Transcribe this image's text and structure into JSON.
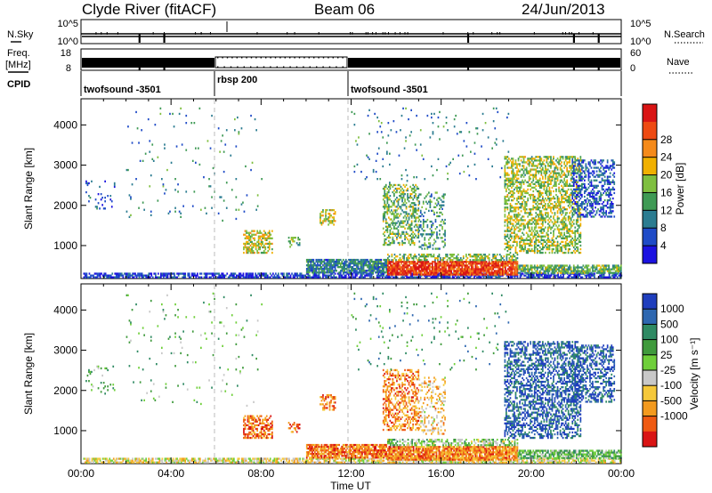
{
  "chart_data": {
    "type": "heatmap",
    "header": {
      "station": "Clyde River (fitACF)",
      "beam": "Beam 06",
      "date": "24/Jun/2013"
    },
    "xlabel": "Time UT",
    "x_ticks": [
      "00:00",
      "04:00",
      "08:00",
      "12:00",
      "16:00",
      "20:00",
      "00:00"
    ],
    "xlim_hours": [
      0,
      24
    ],
    "guides_hours": [
      6,
      12
    ],
    "noise_panel": {
      "left_label": "N.Sky",
      "right_label": "N.Search",
      "left_ticks": [
        "10^5",
        "10^0"
      ],
      "right_ticks": [
        "10^5",
        "10^0"
      ],
      "dips_hours": [
        2.6,
        3.7,
        17.2,
        21.9,
        23.0
      ]
    },
    "freq_panel": {
      "left_label_1": "Freq.",
      "left_label_2": "[MHz]",
      "right_label": "Nave",
      "left_ticks": [
        "18",
        "8"
      ],
      "right_ticks": [
        "60",
        "0"
      ],
      "open_segment_hours": [
        6,
        12
      ]
    },
    "cpid_panel": {
      "label": "CPID",
      "segments": [
        {
          "start": 0,
          "end": 6,
          "name": "twofsound -3501"
        },
        {
          "start": 6,
          "end": 12,
          "name": "rbsp 200"
        },
        {
          "start": 12,
          "end": 24,
          "name": "twofsound -3501"
        }
      ]
    },
    "range_axis": {
      "label": "Slant Range [km]",
      "ylim": [
        180,
        4650
      ],
      "ticks": [
        "1000",
        "2000",
        "3000",
        "4000"
      ]
    },
    "power_scale": {
      "label": "Power [dB]",
      "ticks": [
        "4",
        "8",
        "12",
        "16",
        "20",
        "24",
        "28"
      ],
      "colors": [
        "#1c12e0",
        "#1f4bc7",
        "#2b7c91",
        "#3f9a55",
        "#7fbf3f",
        "#f0b000",
        "#f58a1a",
        "#ee4a12",
        "#d91414"
      ]
    },
    "velocity_scale": {
      "label": "Velocity [m s⁻¹]",
      "ticks": [
        "1000",
        "500",
        "100",
        "25",
        "-25",
        "-100",
        "-500",
        "-1000"
      ],
      "colors": [
        "#1f3ebd",
        "#2e67b0",
        "#2f8a63",
        "#3f9a3c",
        "#6fcf3a",
        "#c8c8c8",
        "#f5c83a",
        "#f39a1e",
        "#ef5a12",
        "#d91414"
      ]
    },
    "echo_regions": [
      {
        "t0": 0.1,
        "t1": 24,
        "r0": 190,
        "r1": 300,
        "density": 0.65,
        "power": 0.12,
        "vel": 0.58
      },
      {
        "t0": 10.0,
        "t1": 13.6,
        "r0": 310,
        "r1": 650,
        "density": 0.85,
        "power": 0.28,
        "vel": 0.8
      },
      {
        "t0": 13.6,
        "t1": 19.4,
        "r0": 260,
        "r1": 620,
        "density": 0.9,
        "power": 0.88,
        "vel": 0.78
      },
      {
        "t0": 13.6,
        "t1": 19.4,
        "r0": 620,
        "r1": 760,
        "density": 0.5,
        "power": 0.45,
        "vel": 0.45
      },
      {
        "t0": 19.4,
        "t1": 24,
        "r0": 300,
        "r1": 520,
        "density": 0.7,
        "power": 0.42,
        "vel": 0.4
      },
      {
        "t0": 7.2,
        "t1": 8.5,
        "r0": 800,
        "r1": 1350,
        "density": 0.55,
        "power": 0.55,
        "vel": 0.82
      },
      {
        "t0": 9.2,
        "t1": 9.7,
        "r0": 950,
        "r1": 1200,
        "density": 0.4,
        "power": 0.45,
        "vel": 0.82
      },
      {
        "t0": 10.6,
        "t1": 11.3,
        "r0": 1500,
        "r1": 1900,
        "density": 0.5,
        "power": 0.55,
        "vel": 0.82
      },
      {
        "t0": 13.4,
        "t1": 15.0,
        "r0": 1000,
        "r1": 2500,
        "density": 0.45,
        "power": 0.45,
        "vel": 0.78
      },
      {
        "t0": 15.0,
        "t1": 16.2,
        "r0": 900,
        "r1": 2300,
        "density": 0.28,
        "power": 0.35,
        "vel": 0.65
      },
      {
        "t0": 18.8,
        "t1": 22.2,
        "r0": 800,
        "r1": 3200,
        "density": 0.5,
        "power": 0.5,
        "vel": 0.12
      },
      {
        "t0": 21.8,
        "t1": 23.7,
        "r0": 1700,
        "r1": 3100,
        "density": 0.45,
        "power": 0.2,
        "vel": 0.12
      },
      {
        "t0": 0.2,
        "t1": 1.5,
        "r0": 1900,
        "r1": 2600,
        "density": 0.12,
        "power": 0.2,
        "vel": 0.4
      },
      {
        "t0": 2.0,
        "t1": 8.0,
        "r0": 1600,
        "r1": 4400,
        "density": 0.02,
        "power": 0.3,
        "vel": 0.4
      },
      {
        "t0": 12.0,
        "t1": 19.0,
        "r0": 2500,
        "r1": 4400,
        "density": 0.03,
        "power": 0.3,
        "vel": 0.3
      }
    ]
  }
}
